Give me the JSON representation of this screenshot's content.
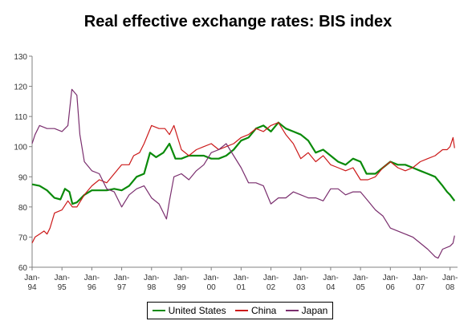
{
  "chart_data": {
    "type": "line",
    "title": "Real effective exchange rates: BIS index",
    "ylim": [
      60,
      130
    ],
    "yticks": [
      60,
      70,
      80,
      90,
      100,
      110,
      120,
      130
    ],
    "xlim": [
      1994.0,
      2008.25
    ],
    "xticks": [
      {
        "month": "Jan-",
        "year": "94"
      },
      {
        "month": "Jan-",
        "year": "95"
      },
      {
        "month": "Jan-",
        "year": "96"
      },
      {
        "month": "Jan-",
        "year": "97"
      },
      {
        "month": "Jan-",
        "year": "98"
      },
      {
        "month": "Jan-",
        "year": "99"
      },
      {
        "month": "Jan-",
        "year": "00"
      },
      {
        "month": "Jan-",
        "year": "01"
      },
      {
        "month": "Jan-",
        "year": "02"
      },
      {
        "month": "Jan-",
        "year": "03"
      },
      {
        "month": "Jan-",
        "year": "04"
      },
      {
        "month": "Jan-",
        "year": "05"
      },
      {
        "month": "Jan-",
        "year": "06"
      },
      {
        "month": "Jan-",
        "year": "07"
      },
      {
        "month": "Jan-",
        "year": "08"
      }
    ],
    "grid": false,
    "legend_position": "bottom",
    "series": [
      {
        "name": "United States",
        "color": "#0a8a0a",
        "points": [
          [
            1994.0,
            87.5
          ],
          [
            1994.25,
            87
          ],
          [
            1994.5,
            85.5
          ],
          [
            1994.75,
            83
          ],
          [
            1994.95,
            82.5
          ],
          [
            1995.1,
            86
          ],
          [
            1995.25,
            85
          ],
          [
            1995.35,
            81
          ],
          [
            1995.5,
            81.5
          ],
          [
            1995.75,
            84
          ],
          [
            1996.0,
            85.5
          ],
          [
            1996.25,
            85.5
          ],
          [
            1996.5,
            85.5
          ],
          [
            1996.75,
            86
          ],
          [
            1997.0,
            85.5
          ],
          [
            1997.25,
            87
          ],
          [
            1997.5,
            90
          ],
          [
            1997.75,
            91
          ],
          [
            1997.95,
            98
          ],
          [
            1998.15,
            96.5
          ],
          [
            1998.4,
            98
          ],
          [
            1998.6,
            101
          ],
          [
            1998.8,
            96
          ],
          [
            1999.0,
            96
          ],
          [
            1999.25,
            97
          ],
          [
            1999.5,
            97
          ],
          [
            1999.75,
            97
          ],
          [
            2000.0,
            96
          ],
          [
            2000.25,
            96
          ],
          [
            2000.5,
            97
          ],
          [
            2000.75,
            99
          ],
          [
            2001.0,
            102
          ],
          [
            2001.25,
            103
          ],
          [
            2001.5,
            106
          ],
          [
            2001.75,
            107
          ],
          [
            2002.0,
            105
          ],
          [
            2002.25,
            108
          ],
          [
            2002.5,
            106
          ],
          [
            2002.75,
            105
          ],
          [
            2003.0,
            104
          ],
          [
            2003.25,
            102
          ],
          [
            2003.5,
            98
          ],
          [
            2003.75,
            99
          ],
          [
            2004.0,
            97
          ],
          [
            2004.25,
            95
          ],
          [
            2004.5,
            94
          ],
          [
            2004.75,
            96
          ],
          [
            2005.0,
            95
          ],
          [
            2005.2,
            91
          ],
          [
            2005.5,
            91
          ],
          [
            2005.75,
            93
          ],
          [
            2006.0,
            95
          ],
          [
            2006.25,
            94
          ],
          [
            2006.5,
            94
          ],
          [
            2006.75,
            93
          ],
          [
            2007.0,
            92
          ],
          [
            2007.25,
            91
          ],
          [
            2007.5,
            90
          ],
          [
            2007.75,
            87
          ],
          [
            2007.9,
            85
          ],
          [
            2008.0,
            84
          ],
          [
            2008.15,
            82
          ]
        ]
      },
      {
        "name": "China",
        "color": "#cc1a1a",
        "points": [
          [
            1994.0,
            68
          ],
          [
            1994.1,
            70
          ],
          [
            1994.25,
            71
          ],
          [
            1994.4,
            72
          ],
          [
            1994.5,
            71
          ],
          [
            1994.6,
            73
          ],
          [
            1994.75,
            78
          ],
          [
            1995.0,
            79
          ],
          [
            1995.2,
            82
          ],
          [
            1995.35,
            80
          ],
          [
            1995.5,
            80
          ],
          [
            1995.75,
            84
          ],
          [
            1996.0,
            87
          ],
          [
            1996.25,
            89
          ],
          [
            1996.5,
            88
          ],
          [
            1996.75,
            91
          ],
          [
            1997.0,
            94
          ],
          [
            1997.25,
            94
          ],
          [
            1997.4,
            97
          ],
          [
            1997.6,
            98
          ],
          [
            1997.75,
            101
          ],
          [
            1998.0,
            107
          ],
          [
            1998.25,
            106
          ],
          [
            1998.45,
            106
          ],
          [
            1998.6,
            104
          ],
          [
            1998.75,
            107
          ],
          [
            1999.0,
            99
          ],
          [
            1999.25,
            97
          ],
          [
            1999.5,
            99
          ],
          [
            1999.75,
            100
          ],
          [
            2000.0,
            101
          ],
          [
            2000.25,
            99
          ],
          [
            2000.5,
            100
          ],
          [
            2000.75,
            101
          ],
          [
            2001.0,
            103
          ],
          [
            2001.25,
            104
          ],
          [
            2001.5,
            106
          ],
          [
            2001.75,
            105
          ],
          [
            2002.0,
            107
          ],
          [
            2002.25,
            108
          ],
          [
            2002.5,
            104
          ],
          [
            2002.75,
            101
          ],
          [
            2003.0,
            96
          ],
          [
            2003.25,
            98
          ],
          [
            2003.5,
            95
          ],
          [
            2003.75,
            97
          ],
          [
            2004.0,
            94
          ],
          [
            2004.25,
            93
          ],
          [
            2004.5,
            92
          ],
          [
            2004.75,
            93
          ],
          [
            2005.0,
            89
          ],
          [
            2005.25,
            89
          ],
          [
            2005.5,
            90
          ],
          [
            2005.75,
            93
          ],
          [
            2006.0,
            95
          ],
          [
            2006.25,
            93
          ],
          [
            2006.5,
            92
          ],
          [
            2006.75,
            93
          ],
          [
            2007.0,
            95
          ],
          [
            2007.25,
            96
          ],
          [
            2007.5,
            97
          ],
          [
            2007.75,
            99
          ],
          [
            2007.9,
            99
          ],
          [
            2008.0,
            100
          ],
          [
            2008.1,
            103
          ],
          [
            2008.15,
            99.5
          ]
        ]
      },
      {
        "name": "Japan",
        "color": "#7a2e6e",
        "points": [
          [
            1994.0,
            101
          ],
          [
            1994.1,
            104
          ],
          [
            1994.25,
            107
          ],
          [
            1994.5,
            106
          ],
          [
            1994.75,
            106
          ],
          [
            1995.0,
            105
          ],
          [
            1995.2,
            107
          ],
          [
            1995.33,
            119
          ],
          [
            1995.5,
            117
          ],
          [
            1995.6,
            104
          ],
          [
            1995.75,
            95
          ],
          [
            1996.0,
            92
          ],
          [
            1996.25,
            91
          ],
          [
            1996.5,
            86
          ],
          [
            1996.75,
            85
          ],
          [
            1997.0,
            80
          ],
          [
            1997.25,
            84
          ],
          [
            1997.5,
            86
          ],
          [
            1997.75,
            87
          ],
          [
            1998.0,
            83
          ],
          [
            1998.25,
            81
          ],
          [
            1998.5,
            76
          ],
          [
            1998.6,
            82
          ],
          [
            1998.75,
            90
          ],
          [
            1999.0,
            91
          ],
          [
            1999.25,
            89
          ],
          [
            1999.5,
            92
          ],
          [
            1999.75,
            94
          ],
          [
            2000.0,
            98
          ],
          [
            2000.25,
            99
          ],
          [
            2000.5,
            101
          ],
          [
            2000.75,
            97
          ],
          [
            2001.0,
            93
          ],
          [
            2001.25,
            88
          ],
          [
            2001.5,
            88
          ],
          [
            2001.75,
            87
          ],
          [
            2002.0,
            81
          ],
          [
            2002.25,
            83
          ],
          [
            2002.5,
            83
          ],
          [
            2002.75,
            85
          ],
          [
            2003.0,
            84
          ],
          [
            2003.25,
            83
          ],
          [
            2003.5,
            83
          ],
          [
            2003.75,
            82
          ],
          [
            2004.0,
            86
          ],
          [
            2004.25,
            86
          ],
          [
            2004.5,
            84
          ],
          [
            2004.75,
            85
          ],
          [
            2005.0,
            85
          ],
          [
            2005.25,
            82
          ],
          [
            2005.5,
            79
          ],
          [
            2005.75,
            77
          ],
          [
            2006.0,
            73
          ],
          [
            2006.25,
            72
          ],
          [
            2006.5,
            71
          ],
          [
            2006.75,
            70
          ],
          [
            2007.0,
            68
          ],
          [
            2007.25,
            66
          ],
          [
            2007.5,
            63.5
          ],
          [
            2007.6,
            63
          ],
          [
            2007.75,
            66
          ],
          [
            2008.0,
            67
          ],
          [
            2008.1,
            68
          ],
          [
            2008.15,
            70.5
          ]
        ]
      }
    ]
  }
}
